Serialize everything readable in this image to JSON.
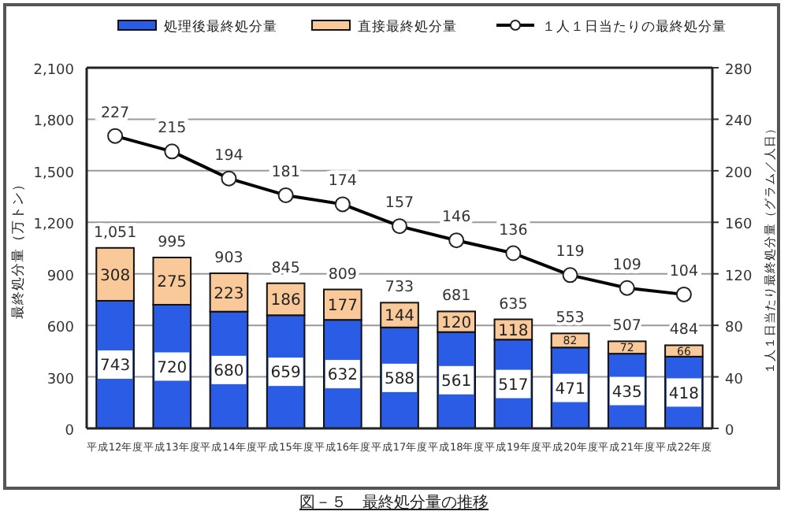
{
  "chart_data": {
    "type": "bar",
    "stacked": true,
    "title": "図－５　最終処分量の推移",
    "ylabel": "最終処分量（万トン）",
    "y2label": "１人１日当たり最終処分量（グラム／人日）",
    "categories": [
      "平成12年度",
      "平成13年度",
      "平成14年度",
      "平成15年度",
      "平成16年度",
      "平成17年度",
      "平成18年度",
      "平成19年度",
      "平成20年度",
      "平成21年度",
      "平成22年度"
    ],
    "series": [
      {
        "name": "処理後最終処分量",
        "color": "#2b5ce6",
        "values": [
          743,
          720,
          680,
          659,
          632,
          588,
          561,
          517,
          471,
          435,
          418
        ]
      },
      {
        "name": "直接最終処分量",
        "color": "#f9c99a",
        "values": [
          308,
          275,
          223,
          186,
          177,
          144,
          120,
          118,
          82,
          72,
          66
        ]
      },
      {
        "name": "１人１日当たりの最終処分量",
        "type": "line",
        "axis": "y2",
        "color": "#000000",
        "marker": "circle",
        "values": [
          227,
          215,
          194,
          181,
          174,
          157,
          146,
          136,
          119,
          109,
          104
        ]
      }
    ],
    "totals": [
      "1,051",
      "995",
      "903",
      "845",
      "809",
      "733",
      "681",
      "635",
      "553",
      "507",
      "484"
    ],
    "data_labels": true,
    "legend": "top",
    "grid": "y",
    "ylim": [
      0,
      2100
    ],
    "yticks": [
      0,
      300,
      600,
      900,
      {
        "value": 1200,
        "label": "1,200"
      },
      {
        "value": 1500,
        "label": "1,500"
      },
      {
        "value": 1800,
        "label": "1,800"
      },
      {
        "value": 2100,
        "label": "2,100"
      }
    ],
    "y2lim": [
      0,
      280
    ],
    "y2ticks": [
      0,
      40,
      80,
      120,
      160,
      200,
      240,
      280
    ]
  }
}
